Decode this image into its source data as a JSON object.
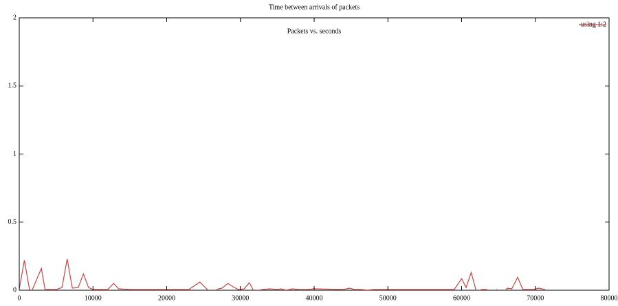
{
  "chart_data": {
    "type": "line",
    "title": "Time between arrivals of packets",
    "annotation": "Packets vs. seconds",
    "x": [
      0,
      700,
      1500,
      3000,
      3500,
      5000,
      5800,
      6500,
      7200,
      8000,
      8700,
      9400,
      10000,
      12000,
      12800,
      13500,
      15000,
      20000,
      23000,
      24500,
      25500,
      26300,
      27000,
      27500,
      28300,
      29000,
      29700,
      30500,
      31200,
      31800,
      33000,
      34000,
      35000,
      35500,
      36200,
      37000,
      38000,
      39000,
      40000,
      44000,
      44800,
      45500,
      46500,
      47200,
      48000,
      59000,
      60000,
      60600,
      61300,
      62000,
      62700,
      63400,
      64100,
      64800,
      65400,
      66200,
      66800,
      67600,
      68300,
      69000,
      69700,
      70500,
      71300
    ],
    "series": [
      {
        "name": "using 1:2",
        "color": "#cc4444",
        "values": [
          0.01,
          0.22,
          -0.03,
          0.16,
          0.005,
          0.005,
          0.02,
          0.23,
          0.015,
          0.02,
          0.12,
          0.02,
          0.005,
          0.005,
          0.05,
          0.01,
          0.005,
          0.005,
          0.005,
          0.06,
          0.005,
          -0.01,
          0.01,
          0.015,
          0.05,
          0.025,
          0.005,
          0.01,
          0.055,
          -0.005,
          0.005,
          0.01,
          0.005,
          0.01,
          0.0,
          0.01,
          0.005,
          0.005,
          0.01,
          0.005,
          0.015,
          0.005,
          0.005,
          0.0,
          0.005,
          0.005,
          0.085,
          0.02,
          0.13,
          -0.01,
          0.005,
          0.005,
          -0.03,
          0.005,
          -0.03,
          0.015,
          0.01,
          0.095,
          0.005,
          0.005,
          0.005,
          0.015,
          0.005
        ]
      }
    ],
    "xlim": [
      0,
      80000
    ],
    "xticks": [
      0,
      10000,
      20000,
      30000,
      40000,
      50000,
      60000,
      70000,
      80000
    ],
    "ylim": [
      0,
      2
    ],
    "yticks": [
      0,
      0.5,
      1,
      1.5,
      2
    ],
    "legend": "top-right"
  }
}
